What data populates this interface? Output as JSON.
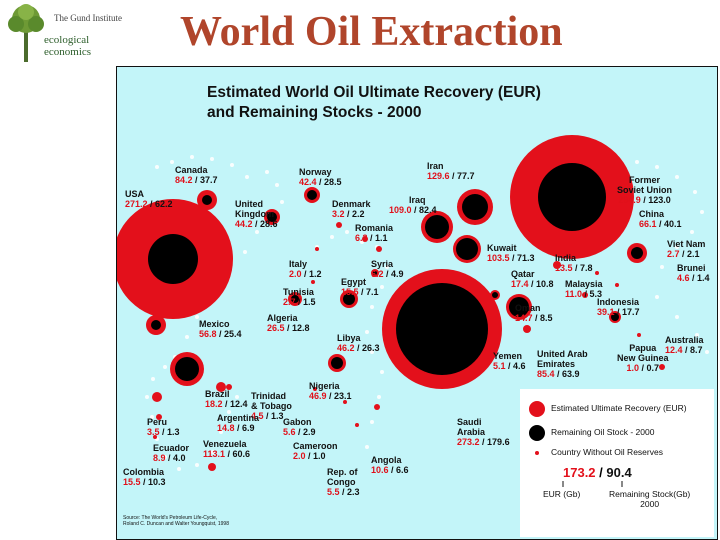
{
  "logo": {
    "name": "The Gund Institute",
    "line1": "ecological",
    "line2": "economics"
  },
  "slide_title": "World Oil Extraction",
  "panel": {
    "title": "Estimated World Oil Ultimate Recovery (EUR)\nand Remaining Stocks - 2000",
    "source": "Source: The World's Petroleum Life-Cycle,\nRoland C. Duncan and Walter Youngquist, 1998"
  },
  "countries": [
    {
      "name": "Canada",
      "eur": "84.2",
      "rem": "37.7"
    },
    {
      "name": "USA",
      "eur": "271.2",
      "rem": "62.2"
    },
    {
      "name": "United\nKingdom",
      "eur": "44.2",
      "rem": "28.6"
    },
    {
      "name": "Norway",
      "eur": "42.4",
      "rem": "28.5"
    },
    {
      "name": "Denmark",
      "eur": "3.2",
      "rem": "2.2"
    },
    {
      "name": "Romania",
      "eur": "6.3",
      "rem": "1.1"
    },
    {
      "name": "Iran",
      "eur": "129.6",
      "rem": "77.7"
    },
    {
      "name": "Iraq",
      "eur": "109.0",
      "rem": "82.4"
    },
    {
      "name": "Former\nSoviet Union",
      "eur": "294.9",
      "rem": "123.0"
    },
    {
      "name": "China",
      "eur": "66.1",
      "rem": "40.1"
    },
    {
      "name": "Viet Nam",
      "eur": "2.7",
      "rem": "2.1"
    },
    {
      "name": "Brunei",
      "eur": "4.6",
      "rem": "1.4"
    },
    {
      "name": "Kuwait",
      "eur": "103.5",
      "rem": "71.3"
    },
    {
      "name": "India",
      "eur": "13.5",
      "rem": "7.8"
    },
    {
      "name": "Qatar",
      "eur": "17.4",
      "rem": "10.8"
    },
    {
      "name": "Malaysia",
      "eur": "11.0",
      "rem": "5.3"
    },
    {
      "name": "Italy",
      "eur": "2.0",
      "rem": "1.2"
    },
    {
      "name": "Syria",
      "eur": "6.2",
      "rem": "4.9"
    },
    {
      "name": "Egypt",
      "eur": "15.5",
      "rem": "7.1"
    },
    {
      "name": "Tunisia",
      "eur": "2.7",
      "rem": "1.5"
    },
    {
      "name": "Algeria",
      "eur": "26.5",
      "rem": "12.8"
    },
    {
      "name": "Oman",
      "eur": "14.7",
      "rem": "8.5"
    },
    {
      "name": "Indonesia",
      "eur": "39.1",
      "rem": "17.7"
    },
    {
      "name": "Papua\nNew Guinea",
      "eur": "1.0",
      "rem": "0.7"
    },
    {
      "name": "Australia",
      "eur": "12.4",
      "rem": "8.7"
    },
    {
      "name": "United Arab\nEmirates",
      "eur": "85.4",
      "rem": "63.9"
    },
    {
      "name": "Yemen",
      "eur": "5.1",
      "rem": "4.6"
    },
    {
      "name": "Mexico",
      "eur": "56.8",
      "rem": "25.4"
    },
    {
      "name": "Libya",
      "eur": "46.2",
      "rem": "26.3"
    },
    {
      "name": "Trinidad\n& Tobago",
      "eur": "4.5",
      "rem": "1.3"
    },
    {
      "name": "Nigeria",
      "eur": "46.9",
      "rem": "23.1"
    },
    {
      "name": "Brazil",
      "eur": "18.2",
      "rem": "12.4"
    },
    {
      "name": "Argentina",
      "eur": "14.8",
      "rem": "6.9"
    },
    {
      "name": "Peru",
      "eur": "3.5",
      "rem": "1.3"
    },
    {
      "name": "Ecuador",
      "eur": "8.9",
      "rem": "4.0"
    },
    {
      "name": "Colombia",
      "eur": "15.5",
      "rem": "10.3"
    },
    {
      "name": "Venezuela",
      "eur": "113.1",
      "rem": "60.6"
    },
    {
      "name": "Gabon",
      "eur": "5.6",
      "rem": "2.9"
    },
    {
      "name": "Cameroon",
      "eur": "2.0",
      "rem": "1.0"
    },
    {
      "name": "Rep. of\nCongo",
      "eur": "5.5",
      "rem": "2.3"
    },
    {
      "name": "Angola",
      "eur": "10.6",
      "rem": "6.6"
    },
    {
      "name": "Saudi\nArabia",
      "eur": "273.2",
      "rem": "179.6"
    }
  ],
  "legend": {
    "eur_label": "Estimated Ultimate Recovery (EUR)",
    "stock_label": "Remaining Oil Stock - 2000",
    "no_reserve_label": "Country Without Oil Reserves",
    "example_eur": "173.2",
    "example_rem": "90.4",
    "axis_eur": "EUR (Gb)",
    "axis_rem": "Remaining Stock(Gb)\n2000",
    "eur_color": "#e3101b",
    "stock_color": "#000000"
  }
}
